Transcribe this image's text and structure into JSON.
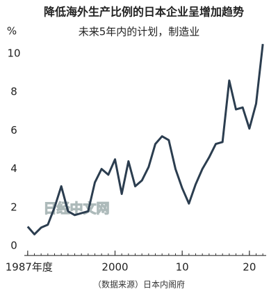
{
  "chart_data": {
    "type": "line",
    "title": "降低海外生产比例的日本企业呈增加趋势",
    "subtitle": "未来5年内的计划，制造业",
    "y_label": "%",
    "source": "（数据来源）日本内阁府",
    "watermark": "日经中文网",
    "x": [
      1987,
      1988,
      1989,
      1990,
      1991,
      1992,
      1993,
      1994,
      1995,
      1996,
      1997,
      1998,
      1999,
      2000,
      2001,
      2002,
      2003,
      2004,
      2005,
      2006,
      2007,
      2008,
      2009,
      2010,
      2011,
      2012,
      2013,
      2014,
      2015,
      2016,
      2017,
      2018,
      2019,
      2020,
      2021,
      2022
    ],
    "series": [
      {
        "color": "#2b3d4f",
        "values": [
          1.0,
          0.6,
          0.95,
          1.1,
          2.0,
          3.1,
          1.8,
          1.6,
          1.7,
          1.8,
          3.3,
          4.0,
          3.7,
          4.5,
          2.7,
          4.4,
          3.1,
          3.4,
          4.1,
          5.3,
          5.7,
          5.5,
          4.0,
          3.0,
          2.2,
          3.2,
          4.0,
          4.6,
          5.3,
          5.4,
          8.6,
          7.1,
          7.2,
          6.1,
          7.4,
          10.5
        ]
      }
    ],
    "xlim": [
      1986.5,
      2022.5
    ],
    "xticks": [
      {
        "value": 1987,
        "label": "1987年度"
      },
      2000,
      {
        "value": 2010,
        "label": "10"
      },
      {
        "value": 2020,
        "label": "20"
      }
    ],
    "ylim": [
      -0.5,
      11
    ],
    "yticks": [
      0,
      2,
      4,
      6,
      8,
      10
    ],
    "grid": false
  }
}
